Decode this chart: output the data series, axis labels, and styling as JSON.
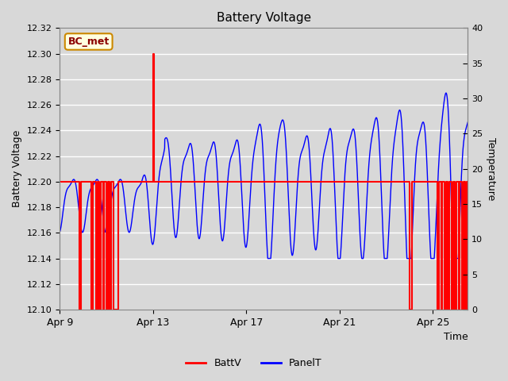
{
  "title": "Battery Voltage",
  "xlabel": "Time",
  "ylabel_left": "Battery Voltage",
  "ylabel_right": "Temperature",
  "ylim_left": [
    12.1,
    12.32
  ],
  "ylim_right": [
    0,
    40
  ],
  "yticks_left": [
    12.1,
    12.12,
    12.14,
    12.16,
    12.18,
    12.2,
    12.22,
    12.24,
    12.26,
    12.28,
    12.3,
    12.32
  ],
  "yticks_right": [
    0,
    5,
    10,
    15,
    20,
    25,
    30,
    35,
    40
  ],
  "xtick_labels": [
    "Apr 9",
    "Apr 13",
    "Apr 17",
    "Apr 21",
    "Apr 25"
  ],
  "xtick_positions": [
    0,
    4,
    8,
    12,
    16
  ],
  "annotation_text": "BC_met",
  "bg_color": "#d8d8d8",
  "grid_color": "#ffffff",
  "legend_entries": [
    "BattV",
    "PanelT"
  ],
  "batt_color": "red",
  "panel_color": "blue",
  "total_days": 17.5,
  "figwidth": 6.4,
  "figheight": 4.8,
  "dpi": 100
}
